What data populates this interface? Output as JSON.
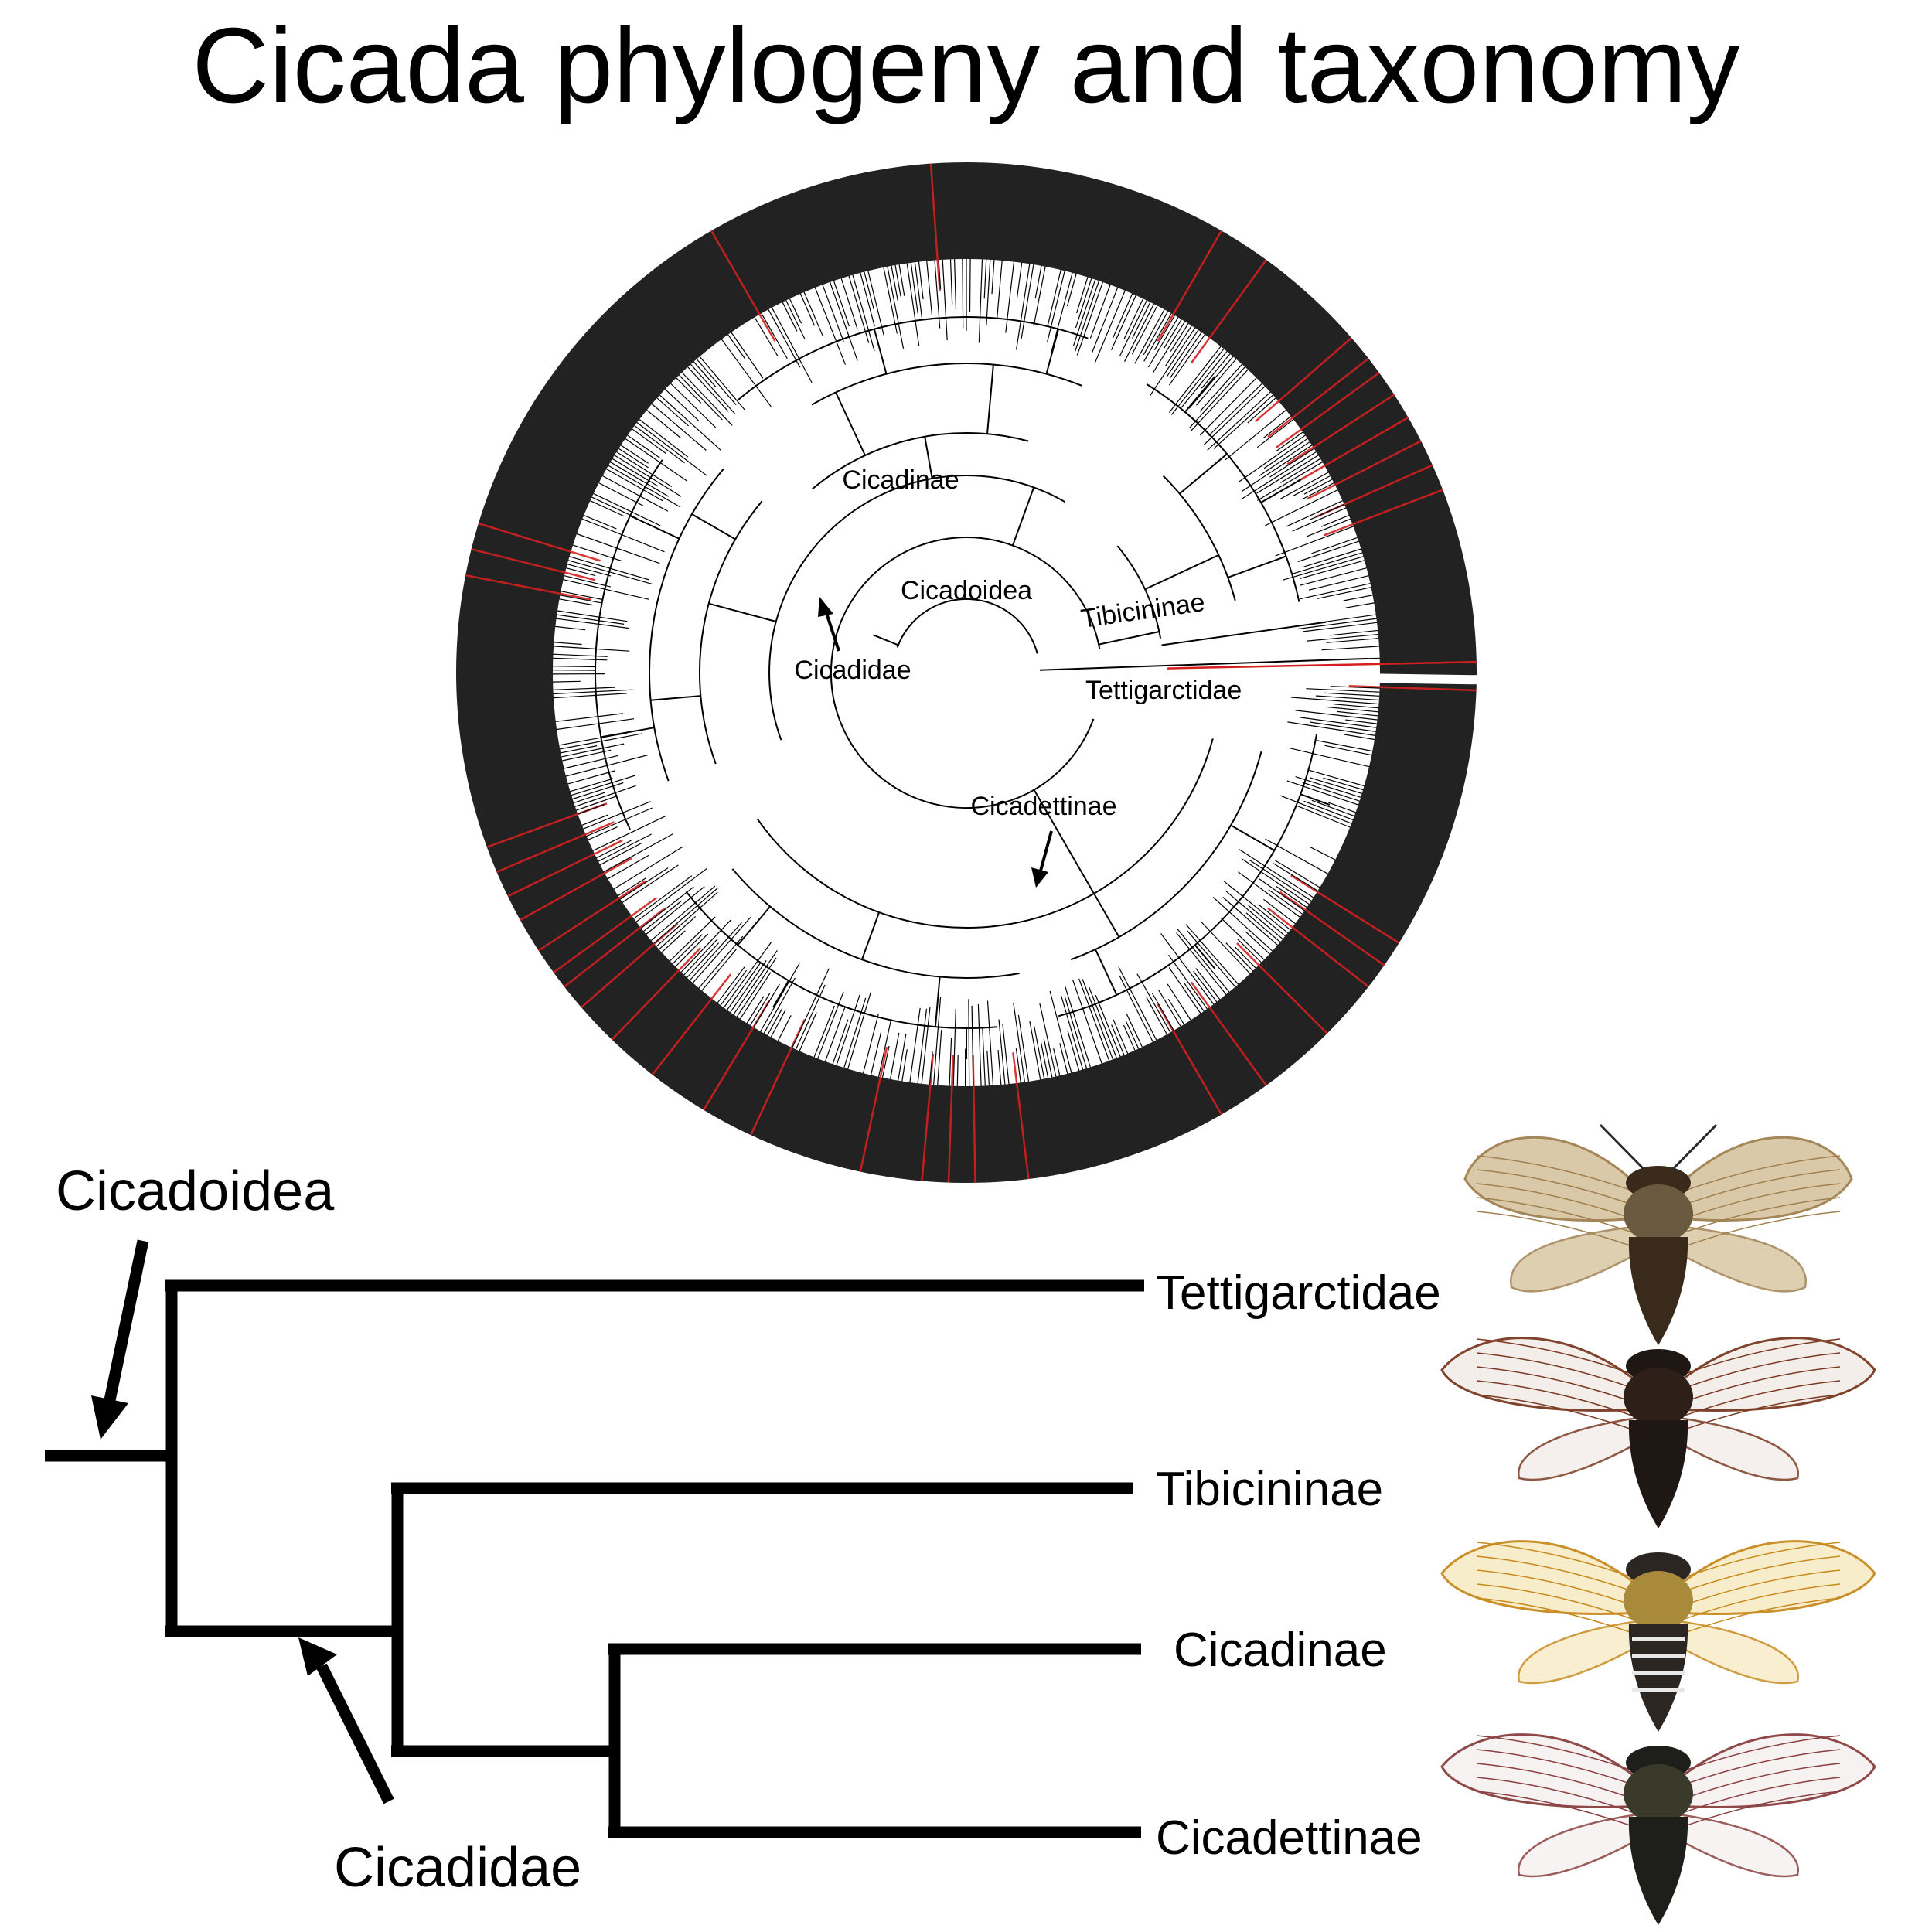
{
  "title": "Cicada phylogeny and taxonomy",
  "colors": {
    "ring": "#222222",
    "highlight": "#d41f1f",
    "branch": "#000000",
    "background": "#ffffff"
  },
  "circular_tree": {
    "labels": {
      "cicadinae": "Cicadinae",
      "cicadoidea": "Cicadoidea",
      "tibicininae": "Tibicininae",
      "cicadidae": "Cicadidae",
      "tettigarctidae": "Tettigarctidae",
      "cicadettinae": "Cicadettinae"
    }
  },
  "cladogram": {
    "annotations": {
      "cicadoidea": "Cicadoidea",
      "cicadidae": "Cicadidae"
    },
    "taxa": [
      "Tettigarctidae",
      "Tibicininae",
      "Cicadinae",
      "Cicadettinae"
    ]
  },
  "specimens": [
    {
      "taxon": "Tettigarctidae",
      "icon": "tettigarctidae-cicada-icon",
      "wing": "#d9c7a4",
      "vein": "#a08050",
      "body": "#3a2a1c",
      "thorax": "#6b5a40"
    },
    {
      "taxon": "Tibicininae",
      "icon": "tibicininae-cicada-icon",
      "wing": "#f4eeea",
      "vein": "#7a3a22",
      "body": "#1e1713",
      "thorax": "#2e2018"
    },
    {
      "taxon": "Cicadinae",
      "icon": "cicadinae-cicada-icon",
      "wing": "#f8edc8",
      "vein": "#c78a1e",
      "body": "#2b2622",
      "thorax": "#a98a3a"
    },
    {
      "taxon": "Cicadettinae",
      "icon": "cicadettinae-cicada-icon",
      "wing": "#f7f2f2",
      "vein": "#8a4040",
      "body": "#1e1e1a",
      "thorax": "#3a3a2a"
    }
  ]
}
